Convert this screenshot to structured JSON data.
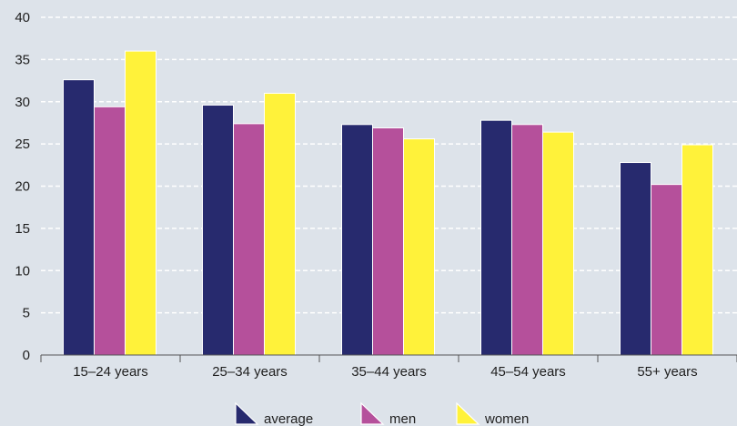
{
  "chart_data": {
    "type": "bar",
    "categories": [
      "15–24 years",
      "25–34 years",
      "35–44 years",
      "45–54 years",
      "55+ years"
    ],
    "series": [
      {
        "name": "average",
        "color": "#272a6e",
        "values": [
          32.6,
          29.6,
          27.3,
          27.8,
          22.8
        ]
      },
      {
        "name": "men",
        "color": "#b5509b",
        "values": [
          29.4,
          27.4,
          26.9,
          27.3,
          20.2
        ]
      },
      {
        "name": "women",
        "color": "#fff23a",
        "values": [
          36.0,
          31.0,
          25.6,
          26.4,
          24.9
        ]
      }
    ],
    "ylim": [
      0,
      40
    ],
    "yticks": [
      0,
      5,
      10,
      15,
      20,
      25,
      30,
      35,
      40
    ],
    "grid": true,
    "legend_position": "bottom",
    "title": "",
    "xlabel": "",
    "ylabel": ""
  }
}
